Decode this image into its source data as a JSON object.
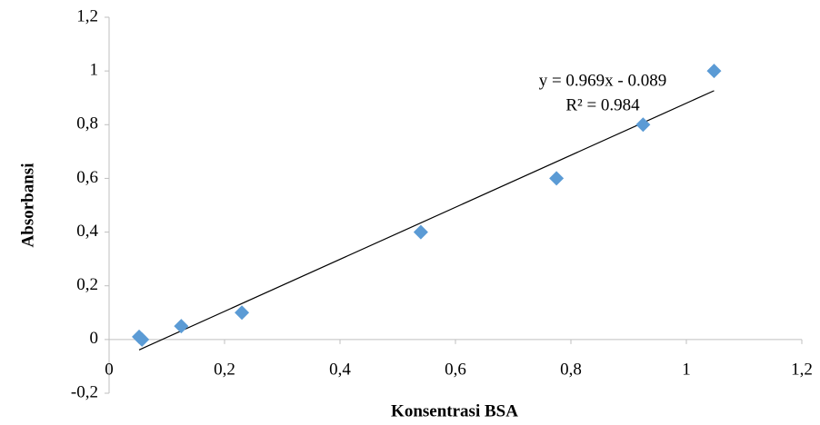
{
  "chart_data": {
    "type": "scatter",
    "x_label": "Konsentrasi BSA",
    "y_label": "Absorbansi",
    "series": [
      {
        "name": "Absorbansi",
        "color": "#5b9bd5",
        "x": [
          0.052,
          0.057,
          0.125,
          0.23,
          0.54,
          0.775,
          0.925,
          1.048
        ],
        "values": [
          0.01,
          0.0,
          0.05,
          0.1,
          0.4,
          0.6,
          0.8,
          1.0
        ]
      }
    ],
    "trendline": {
      "slope": 0.969,
      "intercept": -0.089,
      "color": "#000000",
      "equation": "y = 0.969x - 0.089",
      "r2": "R² = 0.984"
    },
    "xlim": [
      0,
      1.2
    ],
    "xticks": [
      0,
      {
        "value": 0.2,
        "label": "0,2"
      },
      {
        "value": 0.4,
        "label": "0,4"
      },
      {
        "value": 0.6,
        "label": "0,6"
      },
      {
        "value": 0.8,
        "label": "0,8"
      },
      1,
      {
        "value": 1.2,
        "label": "1,2"
      }
    ],
    "ylim": [
      -0.2,
      1.2
    ],
    "yticks": [
      {
        "value": -0.2,
        "label": "-0,2"
      },
      0,
      {
        "value": 0.2,
        "label": "0,2"
      },
      {
        "value": 0.4,
        "label": "0,4"
      },
      {
        "value": 0.6,
        "label": "0,6"
      },
      {
        "value": 0.8,
        "label": "0,8"
      },
      1,
      {
        "value": 1.2,
        "label": "1,2"
      }
    ],
    "grid": false
  }
}
